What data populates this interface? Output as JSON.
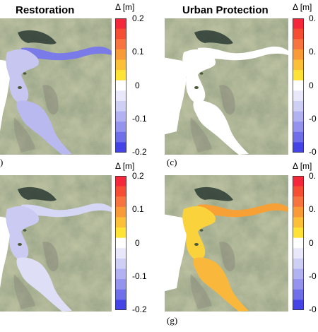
{
  "titles": {
    "left": "Restoration",
    "right": "Urban Protection"
  },
  "colorbar": {
    "label": "Δ [m]",
    "ticks": [
      "0.2",
      "0.1",
      "0",
      "-0.1",
      "-0.2"
    ],
    "ticks_truncated": [
      "0.",
      "0.",
      "0",
      "-0",
      "-0"
    ],
    "colors": [
      "#f5273a",
      "#f54e34",
      "#f77440",
      "#f99a38",
      "#fcbf38",
      "#ffe236",
      "#ffffff",
      "#e8e8fa",
      "#cfcff6",
      "#b2b2f2",
      "#9494ee",
      "#6f6fea",
      "#4444e6"
    ]
  },
  "panels": [
    {
      "id": "top-left",
      "letter": ")",
      "fill": "#c6c6f0",
      "accent": "#7a7ae8",
      "overlay_south": "#b9b9ef"
    },
    {
      "id": "top-right",
      "letter": "(c)",
      "fill": "#ffffff",
      "accent": "#ffffff",
      "overlay_south": "#ffffff"
    },
    {
      "id": "bottom-left",
      "letter": "",
      "fill": "#cacaf2",
      "accent": "#d6d6f5",
      "overlay_south": "#dedef7"
    },
    {
      "id": "bottom-right",
      "letter": "(g)",
      "fill": "#fad23c",
      "accent": "#f7a035",
      "overlay_south": "#f9b83c"
    }
  ]
}
